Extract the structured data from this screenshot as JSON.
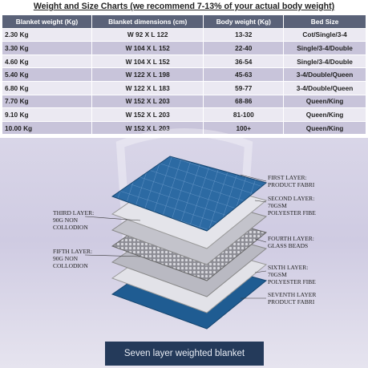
{
  "header": {
    "title": "Weight and Size Charts (we recommend 7-13% of your actual body weight)"
  },
  "table": {
    "columns": [
      "Blanket weight (Kg)",
      "Blanket dimensions (cm)",
      "Body weight (Kg)",
      "Bed Size"
    ],
    "rows": [
      [
        "2.30 Kg",
        "W 92 X L 122",
        "13-32",
        "Cot/Single/3-4"
      ],
      [
        "3.30 Kg",
        "W 104 X L 152",
        "22-40",
        "Single/3-4/Double"
      ],
      [
        "4.60 Kg",
        "W 104 X L 152",
        "36-54",
        "Single/3-4/Double"
      ],
      [
        "5.40 Kg",
        "W 122 X L 198",
        "45-63",
        "3-4/Double/Queen"
      ],
      [
        "6.80 Kg",
        "W 122 X L 183",
        "59-77",
        "3-4/Double/Queen"
      ],
      [
        "7.70 Kg",
        "W 152 X L 203",
        "68-86",
        "Queen/King"
      ],
      [
        "9.10 Kg",
        "W 152 X L 203",
        "81-100",
        "Queen/King"
      ],
      [
        "10.00 Kg",
        "W 152 X L 203",
        "100+",
        "Queen/King"
      ]
    ]
  },
  "layers": [
    {
      "lines": [
        "FIRST LAYER:",
        "PRODUCT FABRI"
      ]
    },
    {
      "lines": [
        "SECOND LAYER:",
        "70GSM",
        "POLYESTER FIBE"
      ]
    },
    {
      "lines": [
        "THIRD LAYER:",
        "90G NON",
        "COLLODION"
      ]
    },
    {
      "lines": [
        "FOURTH LAYER:",
        "GLASS BEADS"
      ]
    },
    {
      "lines": [
        "FIFTH LAYER:",
        "90G NON",
        "COLLODION"
      ]
    },
    {
      "lines": [
        "SIXTH LAYER:",
        "70GSM",
        "POLYESTER FIBE"
      ]
    },
    {
      "lines": [
        "SEVENTH LAYER",
        "PRODUCT FABRI"
      ]
    }
  ],
  "caption": "Seven layer weighted blanket"
}
